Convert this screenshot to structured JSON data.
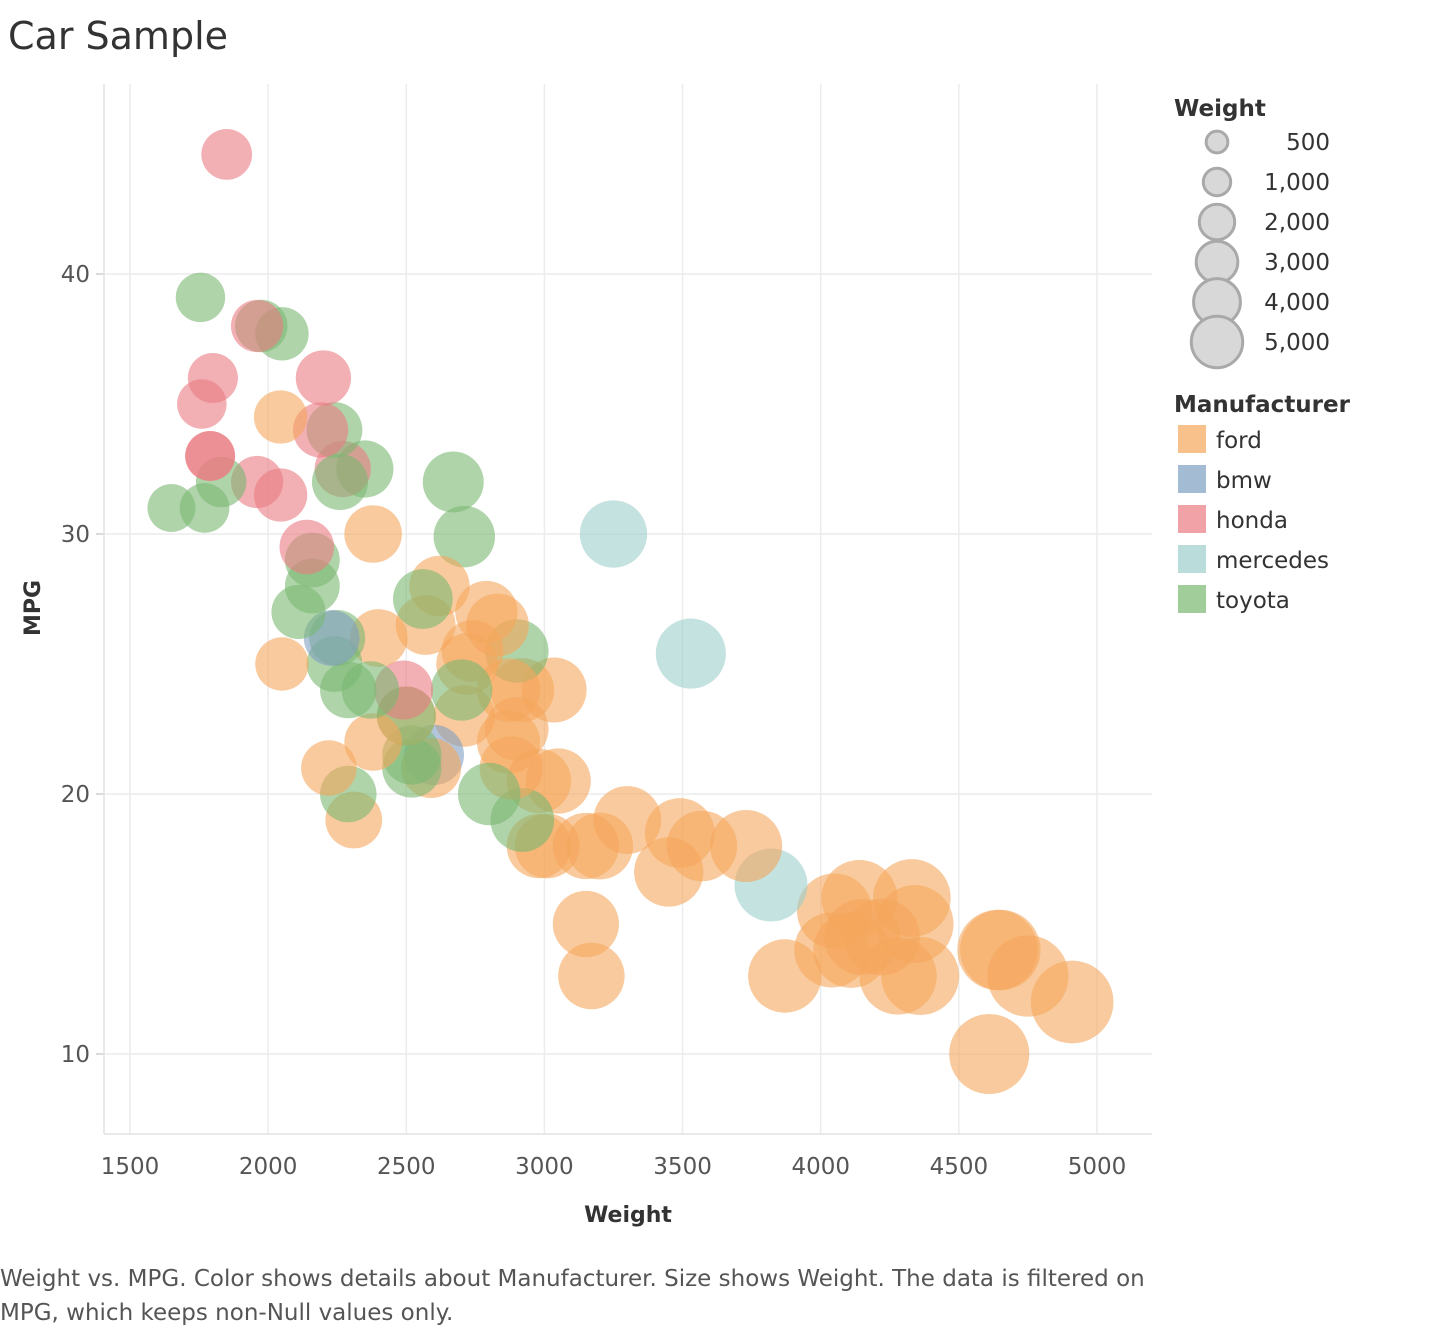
{
  "title": "Car Sample",
  "caption": "Weight vs. MPG.  Color shows details about Manufacturer.  Size shows Weight. The data is filtered on MPG, which keeps non-Null values only.",
  "legends": {
    "size_title": "Weight",
    "size_items": [
      {
        "label": "500",
        "value": 500
      },
      {
        "label": "1,000",
        "value": 1000
      },
      {
        "label": "2,000",
        "value": 2000
      },
      {
        "label": "3,000",
        "value": 3000
      },
      {
        "label": "4,000",
        "value": 4000
      },
      {
        "label": "5,000",
        "value": 5000
      }
    ],
    "color_title": "Manufacturer",
    "color_items": [
      {
        "label": "ford",
        "color": "#f5a65b"
      },
      {
        "label": "bmw",
        "color": "#7e9ec2"
      },
      {
        "label": "honda",
        "color": "#ea7b82"
      },
      {
        "label": "mercedes",
        "color": "#9ccfcc"
      },
      {
        "label": "toyota",
        "color": "#79b871"
      }
    ]
  },
  "chart_data": {
    "type": "scatter",
    "xlabel": "Weight",
    "ylabel": "MPG",
    "xlim": [
      1400,
      5200
    ],
    "ylim": [
      7,
      47
    ],
    "xticks": [
      1500,
      2000,
      2500,
      3000,
      3500,
      4000,
      4500,
      5000
    ],
    "yticks": [
      10,
      20,
      30,
      40
    ],
    "grid": true,
    "legend_position": "right",
    "size_field": "Weight",
    "color_field": "Manufacturer",
    "series": [
      {
        "name": "ford",
        "points": [
          [
            2045,
            34.5
          ],
          [
            2380,
            30
          ],
          [
            2050,
            25
          ],
          [
            2220,
            21
          ],
          [
            2310,
            19
          ],
          [
            2400,
            26
          ],
          [
            2380,
            22
          ],
          [
            2500,
            23
          ],
          [
            2590,
            21
          ],
          [
            2620,
            28
          ],
          [
            2570,
            26.5
          ],
          [
            2710,
            23
          ],
          [
            2720,
            25
          ],
          [
            2740,
            25.5
          ],
          [
            2790,
            27
          ],
          [
            2830,
            26.5
          ],
          [
            2870,
            24
          ],
          [
            2870,
            22
          ],
          [
            2880,
            21
          ],
          [
            2900,
            22.5
          ],
          [
            2920,
            24
          ],
          [
            2980,
            20.5
          ],
          [
            3035,
            24
          ],
          [
            3050,
            20.5
          ],
          [
            2980,
            18
          ],
          [
            3010,
            18
          ],
          [
            3150,
            18
          ],
          [
            3200,
            18
          ],
          [
            3300,
            19
          ],
          [
            3450,
            17
          ],
          [
            3490,
            18.5
          ],
          [
            3570,
            18
          ],
          [
            3730,
            18
          ],
          [
            3150,
            15
          ],
          [
            3170,
            13
          ],
          [
            3870,
            13
          ],
          [
            4040,
            14
          ],
          [
            4050,
            15.5
          ],
          [
            4110,
            14
          ],
          [
            4140,
            16
          ],
          [
            4150,
            14.5
          ],
          [
            4220,
            14.5
          ],
          [
            4280,
            13
          ],
          [
            4330,
            16
          ],
          [
            4340,
            15
          ],
          [
            4360,
            13
          ],
          [
            4640,
            14
          ],
          [
            4650,
            14
          ],
          [
            4610,
            10
          ],
          [
            4750,
            13
          ],
          [
            4910,
            12
          ]
        ]
      },
      {
        "name": "bmw",
        "points": [
          [
            2230,
            26
          ],
          [
            2600,
            21.5
          ]
        ]
      },
      {
        "name": "honda",
        "points": [
          [
            1850,
            44.6
          ],
          [
            1960,
            38
          ],
          [
            1760,
            35
          ],
          [
            1800,
            36
          ],
          [
            1790,
            33
          ],
          [
            1790,
            33
          ],
          [
            1960,
            32
          ],
          [
            2045,
            31.5
          ],
          [
            2200,
            36
          ],
          [
            2190,
            34
          ],
          [
            2270,
            32.5
          ],
          [
            2140,
            29.5
          ],
          [
            2490,
            24
          ]
        ]
      },
      {
        "name": "mercedes",
        "points": [
          [
            3250,
            30
          ],
          [
            3530,
            25.4
          ],
          [
            3820,
            16.5
          ]
        ]
      },
      {
        "name": "toyota",
        "points": [
          [
            1755,
            39.1
          ],
          [
            1975,
            38
          ],
          [
            2050,
            37.7
          ],
          [
            1830,
            32
          ],
          [
            1650,
            31
          ],
          [
            1770,
            31
          ],
          [
            2240,
            34
          ],
          [
            2350,
            32.5
          ],
          [
            2260,
            32
          ],
          [
            2670,
            32
          ],
          [
            2710,
            29.9
          ],
          [
            2160,
            29
          ],
          [
            2160,
            28
          ],
          [
            2110,
            27
          ],
          [
            2250,
            26
          ],
          [
            2240,
            25
          ],
          [
            2290,
            24
          ],
          [
            2370,
            24
          ],
          [
            2560,
            27.5
          ],
          [
            2700,
            24
          ],
          [
            2500,
            23
          ],
          [
            2520,
            21.5
          ],
          [
            2800,
            20
          ],
          [
            2900,
            25.5
          ],
          [
            2920,
            19
          ],
          [
            2290,
            20
          ],
          [
            2520,
            21
          ]
        ]
      }
    ]
  }
}
